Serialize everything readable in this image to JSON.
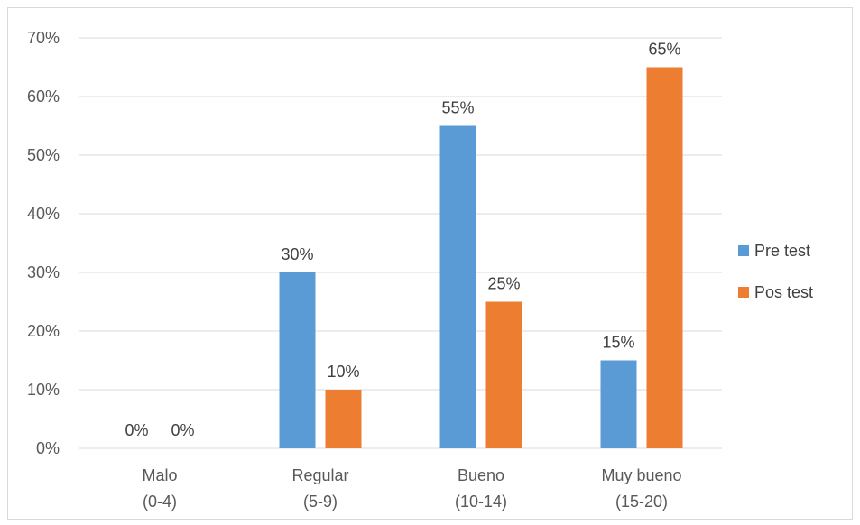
{
  "chart_data": {
    "type": "bar",
    "categories": [
      {
        "line1": "Malo",
        "line2": "(0-4)"
      },
      {
        "line1": "Regular",
        "line2": "(5-9)"
      },
      {
        "line1": "Bueno",
        "line2": "(10-14)"
      },
      {
        "line1": "Muy bueno",
        "line2": "(15-20)"
      }
    ],
    "series": [
      {
        "name": "Pre test",
        "color": "#5B9BD5",
        "values": [
          0,
          30,
          55,
          15
        ]
      },
      {
        "name": "Pos test",
        "color": "#ED7D31",
        "values": [
          0,
          10,
          25,
          65
        ]
      }
    ],
    "ylim": [
      0,
      70
    ],
    "yticks": [
      0,
      10,
      20,
      30,
      40,
      50,
      60,
      70
    ],
    "ytick_suffix": "%",
    "grid": true,
    "legend_position": "right",
    "gridline_color": "#d9d9d9"
  }
}
